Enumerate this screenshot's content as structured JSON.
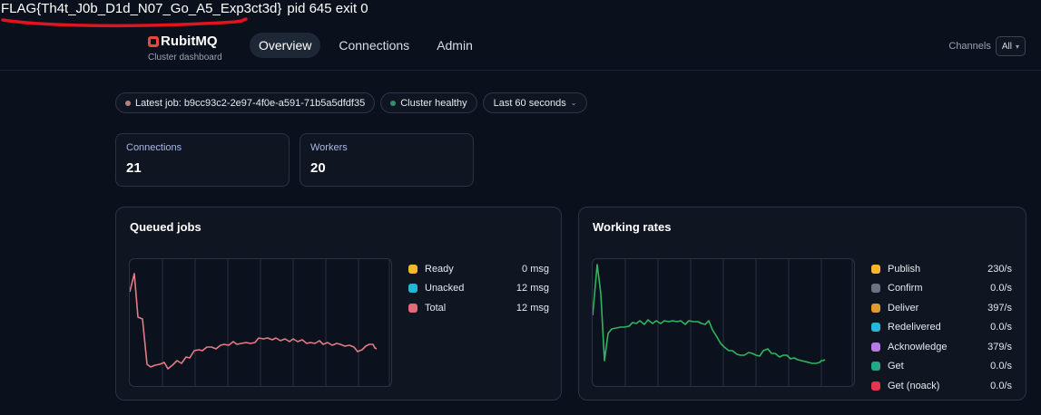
{
  "banner": {
    "flag": "FLAG{Th4t_J0b_D1d_N07_Go_A5_Exp3ct3d}",
    "status": "pid 645 exit 0"
  },
  "brand": {
    "name": "RubitMQ",
    "subtitle": "Cluster dashboard"
  },
  "nav": {
    "tabs": [
      {
        "label": "Overview",
        "active": true
      },
      {
        "label": "Connections",
        "active": false
      },
      {
        "label": "Admin",
        "active": false
      }
    ],
    "channels_label": "Channels",
    "channels_value": "All"
  },
  "chips": {
    "latest_job": "Latest job: b9cc93c2-2e97-4f0e-a591-71b5a5dfdf35",
    "latest_job_color": "#b9837a",
    "health": "Cluster healthy",
    "health_color": "#2f8f6a",
    "range": "Last 60 seconds"
  },
  "stats": [
    {
      "label": "Connections",
      "value": "21"
    },
    {
      "label": "Workers",
      "value": "20"
    }
  ],
  "panels": [
    {
      "title": "Queued jobs",
      "line_color": "#e27b86",
      "legend": [
        {
          "name": "Ready",
          "value": "0 msg",
          "color": "#f5b829"
        },
        {
          "name": "Unacked",
          "value": "12 msg",
          "color": "#22b8d8"
        },
        {
          "name": "Total",
          "value": "12 msg",
          "color": "#e26b78"
        }
      ]
    },
    {
      "title": "Working rates",
      "line_color": "#2fb561",
      "legend": [
        {
          "name": "Publish",
          "value": "230/s",
          "color": "#f5b829"
        },
        {
          "name": "Confirm",
          "value": "0.0/s",
          "color": "#6b7280"
        },
        {
          "name": "Deliver",
          "value": "397/s",
          "color": "#e09a2f"
        },
        {
          "name": "Redelivered",
          "value": "0.0/s",
          "color": "#22b8d8"
        },
        {
          "name": "Acknowledge",
          "value": "379/s",
          "color": "#b77be8"
        },
        {
          "name": "Get",
          "value": "0.0/s",
          "color": "#22a884"
        },
        {
          "name": "Get (noack)",
          "value": "0.0/s",
          "color": "#e8344f"
        }
      ]
    }
  ]
}
